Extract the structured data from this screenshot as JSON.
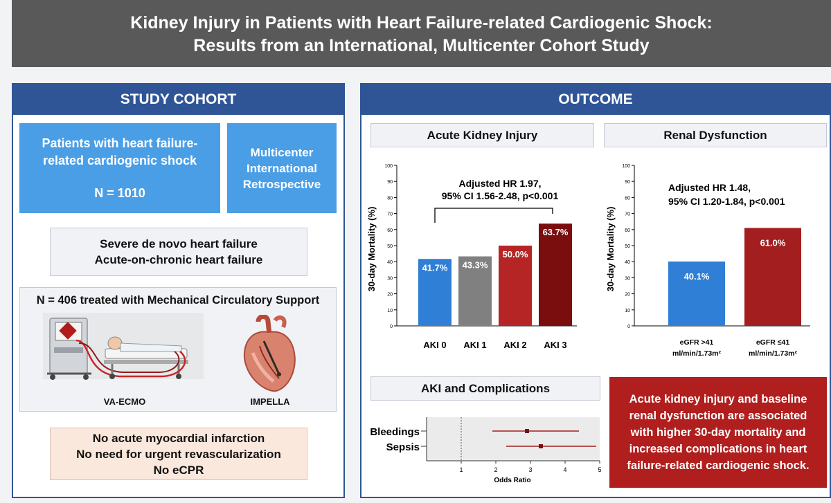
{
  "title": {
    "line1": "Kidney Injury in Patients with Heart Failure-related Cardiogenic Shock:",
    "line2": "Results from an International, Multicenter Cohort Study"
  },
  "cohort": {
    "header": "STUDY COHORT",
    "patients_line1": "Patients with heart failure-",
    "patients_line2": "related cardiogenic shock",
    "n_total": "N = 1010",
    "design_line1": "Multicenter",
    "design_line2": "International",
    "design_line3": "Retrospective",
    "hf_line1": "Severe de novo heart failure",
    "hf_line2": "Acute-on-chronic heart failure",
    "mcs_title": "N = 406 treated with Mechanical Circulatory Support",
    "device1": "VA-ECMO",
    "device2": "IMPELLA",
    "excl_line1": "No acute myocardial infarction",
    "excl_line2": "No need for urgent revascularization",
    "excl_line3": "No eCPR"
  },
  "outcome": {
    "header": "OUTCOME",
    "aki_header": "Acute Kidney Injury",
    "renal_header": "Renal Dysfunction",
    "complications_header": "AKI and Complications",
    "conclusion_line1": "Acute kidney injury and baseline",
    "conclusion_line2": "renal dysfunction are associated",
    "conclusion_line3": "with higher 30-day mortality and",
    "conclusion_line4": "increased complications in heart",
    "conclusion_line5": "failure-related cardiogenic shock."
  },
  "colors": {
    "panel_blue": "#2f5597",
    "box_blue": "#4a9ee6",
    "aki0": "#2f7fd6",
    "aki1": "#808080",
    "aki2": "#b62525",
    "aki3": "#7a0d0d",
    "renal_low": "#2f7fd6",
    "renal_high": "#a31e1e",
    "conclusion_red": "#b01e1e"
  },
  "chart_data": [
    {
      "type": "bar",
      "title": "Acute Kidney Injury",
      "categories": [
        "AKI 0",
        "AKI 1",
        "AKI 2",
        "AKI 3"
      ],
      "values": [
        41.7,
        43.3,
        50.0,
        63.7
      ],
      "value_labels": [
        "41.7%",
        "43.3%",
        "50.0%",
        "63.7%"
      ],
      "ylabel": "30-day Mortality (%)",
      "ylim": [
        0,
        100
      ],
      "yticks": [
        "0",
        "10",
        "20",
        "30",
        "40",
        "50",
        "60",
        "70",
        "80",
        "90",
        "100"
      ],
      "annotation_line1": "Adjusted HR 1.97,",
      "annotation_line2": "95% CI 1.56-2.48, p<0.001"
    },
    {
      "type": "bar",
      "title": "Renal Dysfunction",
      "categories": [
        "eGFR >41 ml/min/1.73m²",
        "eGFR ≤41 ml/min/1.73m²"
      ],
      "category_line1": [
        "eGFR >41",
        "eGFR ≤41"
      ],
      "category_line2": [
        "ml/min/1.73m²",
        "ml/min/1.73m²"
      ],
      "values": [
        40.1,
        61.0
      ],
      "value_labels": [
        "40.1%",
        "61.0%"
      ],
      "ylabel": "30-day Mortality (%)",
      "ylim": [
        0,
        100
      ],
      "yticks": [
        "0",
        "10",
        "20",
        "30",
        "40",
        "50",
        "60",
        "70",
        "80",
        "90",
        "100"
      ],
      "annotation_line1": "Adjusted HR 1.48,",
      "annotation_line2": "95% CI 1.20-1.84, p<0.001"
    },
    {
      "type": "scatter",
      "title": "AKI and Complications",
      "categories": [
        "Bleedings",
        "Sepsis"
      ],
      "values": [
        2.9,
        3.3
      ],
      "ci_low": [
        1.9,
        2.3
      ],
      "ci_high": [
        4.4,
        4.9
      ],
      "xlabel": "Odds Ratio",
      "xlim": [
        0,
        5
      ],
      "xticks": [
        "1",
        "2",
        "3",
        "4",
        "5"
      ],
      "reference_line": 1
    }
  ]
}
